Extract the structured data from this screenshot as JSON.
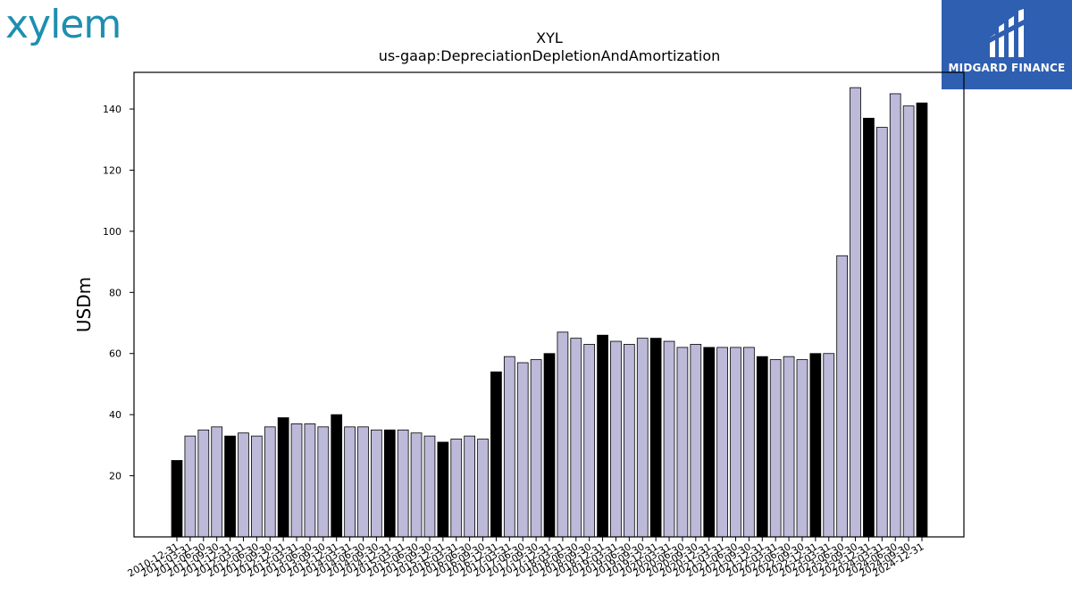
{
  "logos": {
    "left_text": "xylem",
    "right_text": "MIDGARD FINANCE"
  },
  "chart_data": {
    "type": "bar",
    "title": "XYL",
    "subtitle": "us-gaap:DepreciationDepletionAndAmortization",
    "xlabel": "",
    "ylabel": "USDm",
    "ylim": [
      0,
      152
    ],
    "yticks": [
      20,
      40,
      60,
      80,
      100,
      120,
      140
    ],
    "grid": false,
    "colors": {
      "quarter": "#bcb9d9",
      "year_end": "#000000",
      "edge": "#000000"
    },
    "categories": [
      "2010-12-31",
      "2011-03-31",
      "2011-06-30",
      "2011-09-30",
      "2011-12-31",
      "2012-03-31",
      "2012-06-30",
      "2012-09-30",
      "2012-12-31",
      "2013-03-31",
      "2013-06-30",
      "2013-09-30",
      "2013-12-31",
      "2014-03-31",
      "2014-06-30",
      "2014-09-30",
      "2014-12-31",
      "2015-03-31",
      "2015-06-30",
      "2015-09-30",
      "2015-12-31",
      "2016-03-31",
      "2016-06-30",
      "2016-09-30",
      "2016-12-31",
      "2017-03-31",
      "2017-06-30",
      "2017-09-30",
      "2017-12-31",
      "2018-03-31",
      "2018-06-30",
      "2018-09-30",
      "2018-12-31",
      "2019-03-31",
      "2019-06-30",
      "2019-09-30",
      "2019-12-31",
      "2020-03-31",
      "2020-06-30",
      "2020-09-30",
      "2020-12-31",
      "2021-03-31",
      "2021-06-30",
      "2021-09-30",
      "2021-12-31",
      "2022-03-31",
      "2022-06-30",
      "2022-09-30",
      "2022-12-31",
      "2023-03-31",
      "2023-06-30",
      "2023-09-30",
      "2023-12-31",
      "2024-03-31",
      "2024-06-30",
      "2024-09-30",
      "2024-12-31"
    ],
    "values": [
      25,
      33,
      35,
      36,
      33,
      34,
      33,
      36,
      39,
      37,
      37,
      36,
      40,
      36,
      36,
      35,
      35,
      35,
      34,
      33,
      31,
      32,
      33,
      32,
      54,
      59,
      57,
      58,
      60,
      67,
      65,
      63,
      66,
      64,
      63,
      65,
      65,
      64,
      62,
      63,
      62,
      62,
      62,
      62,
      59,
      58,
      59,
      58,
      60,
      60,
      92,
      147,
      137,
      134,
      145,
      141,
      142
    ],
    "year_end": [
      true,
      false,
      false,
      false,
      true,
      false,
      false,
      false,
      true,
      false,
      false,
      false,
      true,
      false,
      false,
      false,
      true,
      false,
      false,
      false,
      true,
      false,
      false,
      false,
      true,
      false,
      false,
      false,
      true,
      false,
      false,
      false,
      true,
      false,
      false,
      false,
      true,
      false,
      false,
      false,
      true,
      false,
      false,
      false,
      true,
      false,
      false,
      false,
      true,
      false,
      false,
      false,
      true,
      false,
      false,
      false,
      true
    ]
  }
}
